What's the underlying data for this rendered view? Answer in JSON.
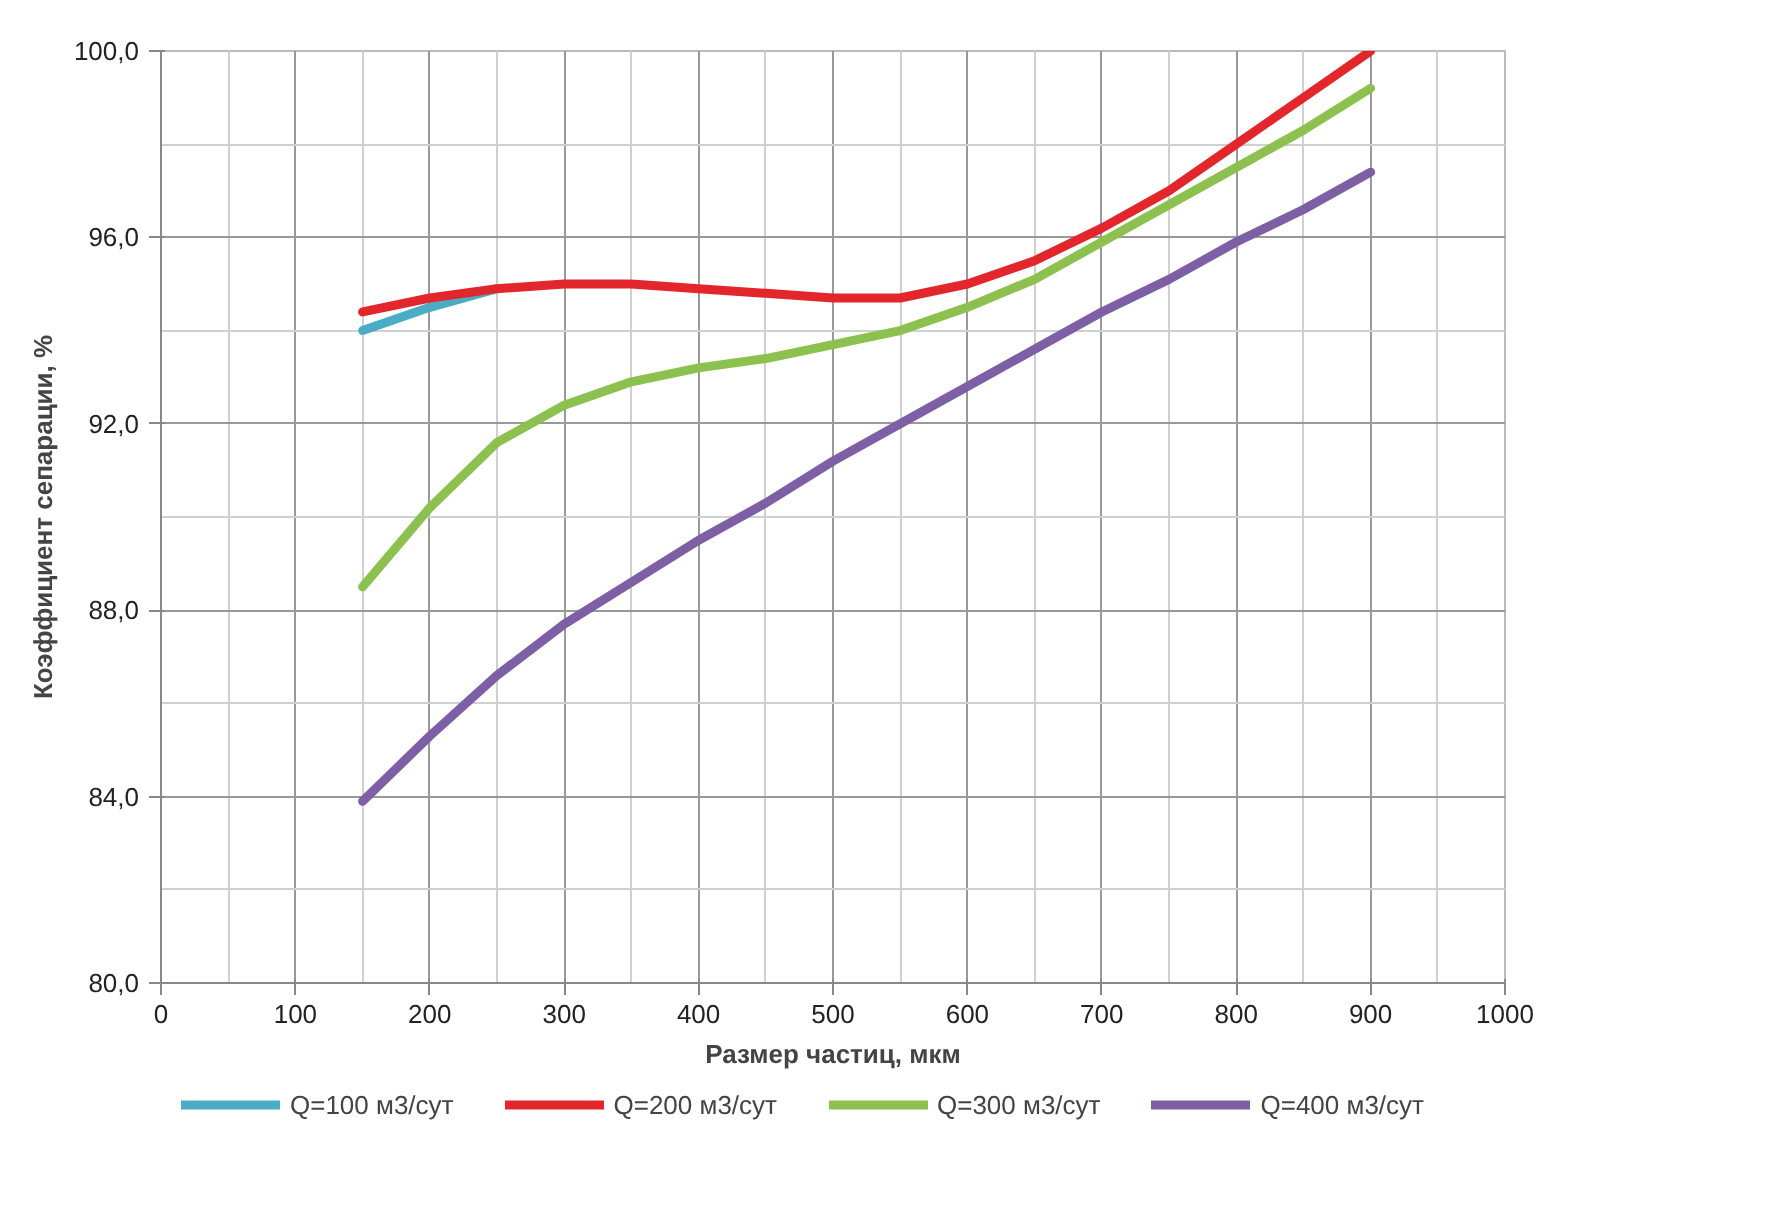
{
  "chart_data": {
    "type": "line",
    "xlabel": "Размер частиц, мкм",
    "ylabel": "Коэффициент сепарации, %",
    "x": [
      150,
      200,
      250,
      300,
      350,
      400,
      450,
      500,
      550,
      600,
      650,
      700,
      750,
      800,
      850,
      900
    ],
    "series": [
      {
        "name": "Q=100 м3/сут",
        "color": "#4bacc6",
        "values": [
          94.0,
          94.5,
          94.9,
          null,
          null,
          null,
          null,
          null,
          null,
          null,
          null,
          null,
          null,
          null,
          null,
          null
        ]
      },
      {
        "name": "Q=200 м3/сут",
        "color": "#e3262b",
        "values": [
          94.4,
          94.7,
          94.9,
          95.0,
          95.0,
          94.9,
          94.8,
          94.7,
          94.7,
          95.0,
          95.5,
          96.2,
          97.0,
          98.0,
          99.0,
          100.0
        ]
      },
      {
        "name": "Q=300 м3/сут",
        "color": "#8cc14f",
        "values": [
          88.5,
          90.2,
          91.6,
          92.4,
          92.9,
          93.2,
          93.4,
          93.7,
          94.0,
          94.5,
          95.1,
          95.9,
          96.7,
          97.5,
          98.3,
          99.2
        ]
      },
      {
        "name": "Q=400 м3/сут",
        "color": "#7d5fa6",
        "values": [
          83.9,
          85.3,
          86.6,
          87.7,
          88.6,
          89.5,
          90.3,
          91.2,
          92.0,
          92.8,
          93.6,
          94.4,
          95.1,
          95.9,
          96.6,
          97.4
        ]
      }
    ],
    "xlim": [
      0,
      1000
    ],
    "xticks": [
      0,
      100,
      200,
      300,
      400,
      500,
      600,
      700,
      800,
      900,
      1000
    ],
    "ylim": [
      80,
      100
    ],
    "yticks": [
      {
        "value": 80,
        "label": "80,0"
      },
      {
        "value": 84,
        "label": "84,0"
      },
      {
        "value": 88,
        "label": "88,0"
      },
      {
        "value": 92,
        "label": "92,0"
      },
      {
        "value": 96,
        "label": "96,0"
      },
      {
        "value": 100,
        "label": "100,0"
      }
    ],
    "grid": true,
    "legend": "bottom",
    "marker": "none",
    "line_style": "solid"
  }
}
